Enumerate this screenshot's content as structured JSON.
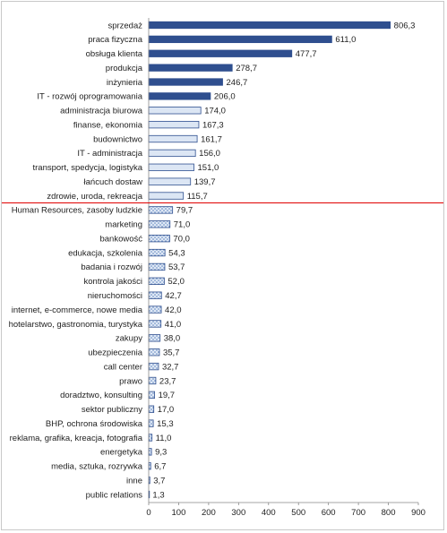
{
  "chart_data": {
    "type": "bar",
    "orientation": "horizontal",
    "categories": [
      "sprzedaż",
      "praca fizyczna",
      "obsługa klienta",
      "produkcja",
      "inżynieria",
      "IT - rozwój oprogramowania",
      "administracja biurowa",
      "finanse, ekonomia",
      "budownictwo",
      "IT - administracja",
      "transport, spedycja, logistyka",
      "łańcuch dostaw",
      "zdrowie, uroda, rekreacja",
      "Human Resources, zasoby ludzkie",
      "marketing",
      "bankowość",
      "edukacja, szkolenia",
      "badania i rozwój",
      "kontrola jakości",
      "nieruchomości",
      "internet, e-commerce, nowe media",
      "hotelarstwo, gastronomia, turystyka",
      "zakupy",
      "ubezpieczenia",
      "call center",
      "prawo",
      "doradztwo, konsulting",
      "sektor publiczny",
      "BHP, ochrona środowiska",
      "reklama, grafika, kreacja, fotografia",
      "energetyka",
      "media, sztuka, rozrywka",
      "inne",
      "public relations"
    ],
    "values": [
      806.3,
      611.0,
      477.7,
      278.7,
      246.7,
      206.0,
      174.0,
      167.3,
      161.7,
      156.0,
      151.0,
      139.7,
      115.7,
      79.7,
      71.0,
      70.0,
      54.3,
      53.7,
      52.0,
      42.7,
      42.0,
      41.0,
      38.0,
      35.7,
      32.7,
      23.7,
      19.7,
      17.0,
      15.3,
      11.0,
      9.3,
      6.7,
      3.7,
      1.3
    ],
    "value_labels": [
      "806,3",
      "611,0",
      "477,7",
      "278,7",
      "246,7",
      "206,0",
      "174,0",
      "167,3",
      "161,7",
      "156,0",
      "151,0",
      "139,7",
      "115,7",
      "79,7",
      "71,0",
      "70,0",
      "54,3",
      "53,7",
      "52,0",
      "42,7",
      "42,0",
      "41,0",
      "38,0",
      "35,7",
      "32,7",
      "23,7",
      "19,7",
      "17,0",
      "15,3",
      "11,0",
      "9,3",
      "6,7",
      "3,7",
      "1,3"
    ],
    "bar_styles": [
      "dark",
      "dark",
      "dark",
      "dark",
      "dark",
      "dark",
      "light",
      "light",
      "light",
      "light",
      "light",
      "light",
      "light",
      "dotted",
      "dotted",
      "dotted",
      "dotted",
      "dotted",
      "dotted",
      "dotted",
      "dotted",
      "dotted",
      "dotted",
      "dotted",
      "dotted",
      "dotted",
      "dotted",
      "dotted",
      "dotted",
      "dotted",
      "dotted",
      "dotted",
      "dotted",
      "dotted"
    ],
    "xlim": [
      0,
      900
    ],
    "x_ticks": [
      0,
      100,
      200,
      300,
      400,
      500,
      600,
      700,
      800,
      900
    ],
    "grid": false,
    "legend": "none",
    "divider_after_index": 12,
    "colors": {
      "dark_fill": "#2f4f8f",
      "light_fill": "#dce6f4",
      "bar_outline": "#2f4f8f",
      "dotted_fill": "#dfe8f5",
      "dotted_pattern": "#5f86bf",
      "divider_line": "#e00000",
      "axis": "#888888"
    }
  }
}
